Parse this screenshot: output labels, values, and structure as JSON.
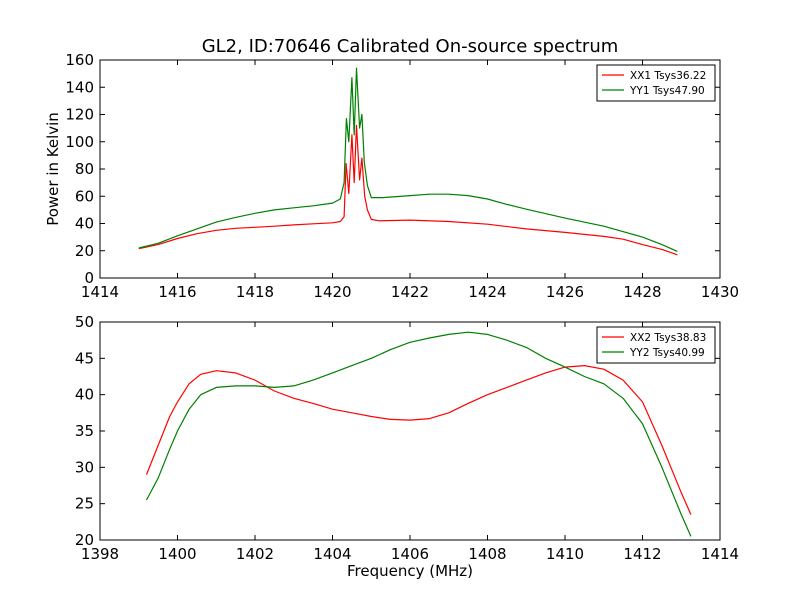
{
  "chart_data": [
    {
      "type": "line",
      "title": "GL2, ID:70646 Calibrated On-source spectrum",
      "xlabel": "",
      "ylabel": "Power in Kelvin",
      "xlim": [
        1414,
        1430
      ],
      "ylim": [
        0,
        160
      ],
      "xticks": [
        "1414",
        "1416",
        "1418",
        "1420",
        "1422",
        "1424",
        "1426",
        "1428",
        "1430"
      ],
      "yticks": [
        "0",
        "20",
        "40",
        "60",
        "80",
        "100",
        "120",
        "140",
        "160"
      ],
      "legend_position": "top-right",
      "series": [
        {
          "name": "XX1 Tsys36.22",
          "color": "#ff0000",
          "points": [
            [
              1415.0,
              21.5
            ],
            [
              1415.5,
              24.5
            ],
            [
              1416.0,
              29.0
            ],
            [
              1416.5,
              32.5
            ],
            [
              1417.0,
              35.0
            ],
            [
              1417.5,
              36.5
            ],
            [
              1418.0,
              37.2
            ],
            [
              1418.5,
              38.0
            ],
            [
              1419.0,
              39.0
            ],
            [
              1419.5,
              39.8
            ],
            [
              1420.0,
              40.5
            ],
            [
              1420.2,
              41.5
            ],
            [
              1420.3,
              45
            ],
            [
              1420.35,
              84
            ],
            [
              1420.42,
              62
            ],
            [
              1420.5,
              105
            ],
            [
              1420.56,
              70
            ],
            [
              1420.62,
              112
            ],
            [
              1420.7,
              72
            ],
            [
              1420.76,
              88
            ],
            [
              1420.83,
              60
            ],
            [
              1420.9,
              50
            ],
            [
              1421.0,
              43
            ],
            [
              1421.2,
              42
            ],
            [
              1422.0,
              42.5
            ],
            [
              1423.0,
              41.5
            ],
            [
              1424.0,
              39.5
            ],
            [
              1425.0,
              36.0
            ],
            [
              1426.0,
              33.5
            ],
            [
              1427.0,
              30.5
            ],
            [
              1427.5,
              28.5
            ],
            [
              1428.0,
              24.5
            ],
            [
              1428.5,
              21.0
            ],
            [
              1428.9,
              17.0
            ]
          ]
        },
        {
          "name": "YY1 Tsys47.90",
          "color": "#008000",
          "points": [
            [
              1415.0,
              22.0
            ],
            [
              1415.5,
              25.5
            ],
            [
              1416.0,
              31.0
            ],
            [
              1416.5,
              36.0
            ],
            [
              1417.0,
              41.0
            ],
            [
              1417.5,
              44.5
            ],
            [
              1418.0,
              47.5
            ],
            [
              1418.5,
              50.0
            ],
            [
              1419.0,
              51.5
            ],
            [
              1419.5,
              53.0
            ],
            [
              1420.0,
              55.0
            ],
            [
              1420.2,
              58
            ],
            [
              1420.3,
              70
            ],
            [
              1420.36,
              117
            ],
            [
              1420.42,
              100
            ],
            [
              1420.5,
              147
            ],
            [
              1420.56,
              105
            ],
            [
              1420.62,
              154
            ],
            [
              1420.7,
              110
            ],
            [
              1420.76,
              120
            ],
            [
              1420.82,
              85
            ],
            [
              1420.9,
              68
            ],
            [
              1421.0,
              59
            ],
            [
              1421.3,
              59
            ],
            [
              1422.0,
              60.5
            ],
            [
              1422.5,
              61.5
            ],
            [
              1423.0,
              61.5
            ],
            [
              1423.5,
              60.5
            ],
            [
              1424.0,
              58.0
            ],
            [
              1424.5,
              54.0
            ],
            [
              1425.0,
              50.5
            ],
            [
              1426.0,
              44.0
            ],
            [
              1427.0,
              38.0
            ],
            [
              1428.0,
              30.0
            ],
            [
              1428.5,
              24.5
            ],
            [
              1428.9,
              19.5
            ]
          ]
        }
      ]
    },
    {
      "type": "line",
      "title": "",
      "xlabel": "Frequency (MHz)",
      "ylabel": "",
      "xlim": [
        1398,
        1414
      ],
      "ylim": [
        20,
        50
      ],
      "xticks": [
        "1398",
        "1400",
        "1402",
        "1404",
        "1406",
        "1408",
        "1410",
        "1412",
        "1414"
      ],
      "yticks": [
        "20",
        "25",
        "30",
        "35",
        "40",
        "45",
        "50"
      ],
      "legend_position": "top-right",
      "series": [
        {
          "name": "XX2 Tsys38.83",
          "color": "#ff0000",
          "points": [
            [
              1399.2,
              29.0
            ],
            [
              1399.5,
              33.0
            ],
            [
              1399.8,
              37.0
            ],
            [
              1400.0,
              39.0
            ],
            [
              1400.3,
              41.5
            ],
            [
              1400.6,
              42.8
            ],
            [
              1401.0,
              43.3
            ],
            [
              1401.5,
              43.0
            ],
            [
              1402.0,
              42.0
            ],
            [
              1402.5,
              40.5
            ],
            [
              1403.0,
              39.5
            ],
            [
              1403.5,
              38.8
            ],
            [
              1404.0,
              38.0
            ],
            [
              1404.5,
              37.5
            ],
            [
              1405.0,
              37.0
            ],
            [
              1405.5,
              36.6
            ],
            [
              1406.0,
              36.5
            ],
            [
              1406.5,
              36.7
            ],
            [
              1407.0,
              37.5
            ],
            [
              1407.5,
              38.8
            ],
            [
              1408.0,
              40.0
            ],
            [
              1408.5,
              41.0
            ],
            [
              1409.0,
              42.0
            ],
            [
              1409.5,
              43.0
            ],
            [
              1410.0,
              43.8
            ],
            [
              1410.5,
              44.0
            ],
            [
              1411.0,
              43.5
            ],
            [
              1411.5,
              42.0
            ],
            [
              1412.0,
              39.0
            ],
            [
              1412.5,
              33.0
            ],
            [
              1413.0,
              26.5
            ],
            [
              1413.25,
              23.5
            ]
          ]
        },
        {
          "name": "YY2 Tsys40.99",
          "color": "#008000",
          "points": [
            [
              1399.2,
              25.5
            ],
            [
              1399.5,
              28.5
            ],
            [
              1399.8,
              32.5
            ],
            [
              1400.0,
              35.0
            ],
            [
              1400.3,
              38.0
            ],
            [
              1400.6,
              40.0
            ],
            [
              1401.0,
              41.0
            ],
            [
              1401.5,
              41.2
            ],
            [
              1402.0,
              41.2
            ],
            [
              1402.5,
              41.0
            ],
            [
              1403.0,
              41.2
            ],
            [
              1403.5,
              42.0
            ],
            [
              1404.0,
              43.0
            ],
            [
              1404.5,
              44.0
            ],
            [
              1405.0,
              45.0
            ],
            [
              1405.5,
              46.2
            ],
            [
              1406.0,
              47.2
            ],
            [
              1406.5,
              47.8
            ],
            [
              1407.0,
              48.3
            ],
            [
              1407.5,
              48.6
            ],
            [
              1408.0,
              48.3
            ],
            [
              1408.5,
              47.5
            ],
            [
              1409.0,
              46.5
            ],
            [
              1409.5,
              45.0
            ],
            [
              1410.0,
              43.8
            ],
            [
              1410.5,
              42.5
            ],
            [
              1411.0,
              41.5
            ],
            [
              1411.5,
              39.5
            ],
            [
              1412.0,
              36.0
            ],
            [
              1412.5,
              30.0
            ],
            [
              1413.0,
              23.5
            ],
            [
              1413.25,
              20.5
            ]
          ]
        }
      ]
    }
  ]
}
